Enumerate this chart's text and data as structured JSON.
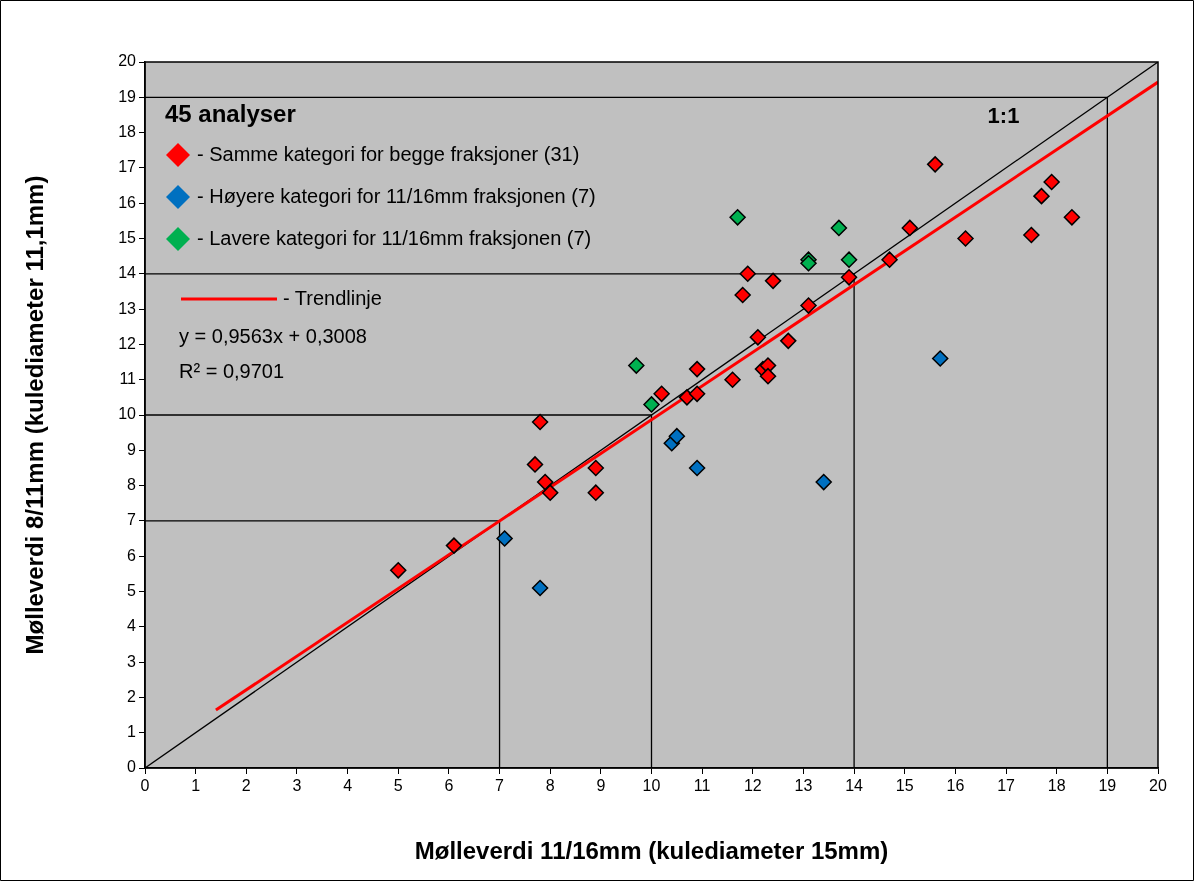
{
  "chart_data": {
    "type": "scatter",
    "xlabel": "Mølleverdi 11/16mm (kulediameter 15mm)",
    "ylabel": "Mølleverdi 8/11mm (kulediameter 11,1mm)",
    "legend_title": "45 analyser",
    "legend": "top left",
    "grid": false,
    "marker": "diamond",
    "xlim": [
      0,
      20
    ],
    "ylim": [
      0,
      20
    ],
    "xticks": [
      0,
      1,
      2,
      3,
      4,
      5,
      6,
      7,
      8,
      9,
      10,
      11,
      12,
      13,
      14,
      15,
      16,
      17,
      18,
      19,
      20
    ],
    "yticks": [
      0,
      1,
      2,
      3,
      4,
      5,
      6,
      7,
      8,
      9,
      10,
      11,
      12,
      13,
      14,
      15,
      16,
      17,
      18,
      19,
      20
    ],
    "series": [
      {
        "name": "- Samme kategori for begge fraksjoner (31)",
        "color": "#ff0000",
        "x": [
          5.0,
          6.1,
          7.7,
          7.8,
          7.9,
          8.0,
          8.9,
          8.9,
          10.2,
          10.7,
          10.9,
          10.9,
          11.6,
          11.8,
          11.9,
          12.1,
          12.2,
          12.3,
          12.3,
          12.4,
          12.7,
          13.1,
          13.9,
          14.7,
          15.1,
          15.6,
          16.2,
          17.5,
          17.7,
          17.9,
          18.3
        ],
        "values": [
          5.6,
          6.3,
          8.6,
          9.8,
          8.1,
          7.8,
          8.5,
          7.8,
          10.6,
          10.5,
          10.6,
          11.3,
          11.0,
          13.4,
          14.0,
          12.2,
          11.3,
          11.4,
          11.1,
          13.8,
          12.1,
          13.1,
          13.9,
          14.4,
          15.3,
          17.1,
          15.0,
          15.1,
          16.2,
          16.6,
          15.6
        ]
      },
      {
        "name": "- Høyere kategori for 11/16mm fraksjonen (7)",
        "color": "#0070c0",
        "x": [
          7.1,
          7.8,
          10.4,
          10.5,
          10.9,
          13.4,
          15.7
        ],
        "values": [
          6.5,
          5.1,
          9.2,
          9.4,
          8.5,
          8.1,
          11.6
        ]
      },
      {
        "name": "- Lavere kategori for 11/16mm fraksjonen (7)",
        "color": "#00b050",
        "x": [
          9.7,
          10.0,
          11.7,
          13.1,
          13.1,
          13.7,
          13.9
        ],
        "values": [
          11.4,
          10.3,
          15.6,
          14.4,
          14.3,
          15.3,
          14.4
        ]
      },
      {
        "name": "- Trendlinje",
        "type": "line",
        "marker": "none",
        "color": "#ff0000",
        "line_style": "solid",
        "x": [
          1.4,
          20
        ],
        "values": [
          1.64,
          19.43
        ]
      },
      {
        "type": "line",
        "marker": "none",
        "color": "#000000",
        "line_style": "solid",
        "x": [
          0,
          20
        ],
        "values": [
          0,
          20
        ]
      },
      {
        "type": "line",
        "marker": "none",
        "color": "#000000",
        "line_style": "solid",
        "x": [
          0,
          7,
          7
        ],
        "values": [
          7,
          7,
          0
        ]
      },
      {
        "type": "line",
        "marker": "none",
        "color": "#000000",
        "line_style": "solid",
        "x": [
          0,
          10,
          10
        ],
        "values": [
          10,
          10,
          0
        ]
      },
      {
        "type": "line",
        "marker": "none",
        "color": "#000000",
        "line_style": "solid",
        "x": [
          0,
          14,
          14
        ],
        "values": [
          14,
          14,
          0
        ]
      },
      {
        "type": "line",
        "marker": "none",
        "color": "#000000",
        "line_style": "solid",
        "x": [
          0,
          19,
          19
        ],
        "values": [
          19,
          19,
          0
        ]
      }
    ],
    "annotations": [
      "y = 0,9563x + 0,3008",
      "R² = 0,9701",
      {
        "text": "1:1",
        "x": 17.5,
        "y": 17.5
      }
    ]
  }
}
